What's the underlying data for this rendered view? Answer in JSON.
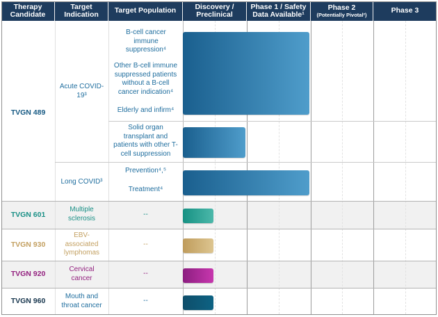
{
  "header": {
    "columns": [
      {
        "id": "therapy-candidate",
        "label": "Therapy Candidate"
      },
      {
        "id": "target-indication",
        "label": "Target Indication"
      },
      {
        "id": "target-population",
        "label": "Target Population"
      },
      {
        "id": "discovery-preclinical",
        "label": "Discovery / Preclinical"
      },
      {
        "id": "phase-1",
        "label": "Phase 1 / Safety Data Available¹"
      },
      {
        "id": "phase-2",
        "label": "Phase 2",
        "sublabel": "(Potentially Pivotal²)"
      },
      {
        "id": "phase-3",
        "label": "Phase 3"
      }
    ]
  },
  "tvgn489": {
    "candidate": "TVGN 489",
    "acute": {
      "indication": "Acute COVID-19³",
      "population_1": "B-cell cancer immune suppression⁴",
      "population_2": "Other B-cell immune suppressed patients without a B-cell cancer indication⁴",
      "population_3": "Elderly and infirm⁴",
      "population_secondary": "Solid organ transplant and patients with other T-cell suppression"
    },
    "long_covid": {
      "indication": "Long COVID³",
      "population_1": "Prevention⁴,⁵",
      "population_2": "Treatment⁴"
    }
  },
  "programs": [
    {
      "candidate": "TVGN 601",
      "indication": "Multiple sclerosis",
      "population": "--"
    },
    {
      "candidate": "TVGN 930",
      "indication": "EBV-associated lymphomas",
      "population": "--"
    },
    {
      "candidate": "TVGN 920",
      "indication": "Cervical cancer",
      "population": "--"
    },
    {
      "candidate": "TVGN 960",
      "indication": "Mouth and throat cancer",
      "population": "--"
    }
  ],
  "colors": {
    "header_bg": "#1e3c5e",
    "header_text": "#ffffff",
    "row_stripe": "#f1f1f1",
    "grid_line": "#9c9c9c",
    "light_line": "#c9c9c9",
    "blue_text": "#1e6d9e",
    "tvgn489_text": "#175a84",
    "teal_text": "#1a9086",
    "gold_text": "#c3a061",
    "magenta_text": "#93217f",
    "navy_text": "#16354d",
    "bars": {
      "blue": {
        "from": "#1a5f8e",
        "to": "#4f9dcb"
      },
      "teal": {
        "from": "#169183",
        "to": "#4cb8aa"
      },
      "gold": {
        "from": "#bf9c5c",
        "to": "#ddc590"
      },
      "magenta": {
        "from": "#8c1e80",
        "to": "#c737ae"
      },
      "navy": {
        "from": "#0f4e6a",
        "to": "#0d6283"
      }
    }
  },
  "chart_data": {
    "type": "bar",
    "title": "Therapy candidate development pipeline",
    "stages": [
      "Discovery / Preclinical",
      "Phase 1 / Safety Data Available¹",
      "Phase 2 (Potentially Pivotal²)",
      "Phase 3"
    ],
    "stage_axis_note": "stages_completed measured in phase-column units from start of Discovery / Preclinical",
    "bars": [
      {
        "id": "acute-main",
        "candidate": "TVGN 489",
        "indication": "Acute COVID-19³",
        "population": "B-cell cancer immune suppression⁴; Other B-cell immune suppressed patients without a B-cell cancer indication⁴; Elderly and infirm⁴",
        "stages_completed": 2,
        "color": "blue"
      },
      {
        "id": "acute-solid",
        "candidate": "TVGN 489",
        "indication": "Acute COVID-19³",
        "population": "Solid organ transplant and patients with other T-cell suppression",
        "stages_completed": 1,
        "color": "blue"
      },
      {
        "id": "long-covid",
        "candidate": "TVGN 489",
        "indication": "Long COVID³",
        "population": "Prevention⁴,⁵; Treatment⁴",
        "stages_completed": 2,
        "color": "blue"
      },
      {
        "id": "tvgn601",
        "candidate": "TVGN 601",
        "indication": "Multiple sclerosis",
        "population": "--",
        "stages_completed": 0.5,
        "color": "teal"
      },
      {
        "id": "tvgn930",
        "candidate": "TVGN 930",
        "indication": "EBV-associated lymphomas",
        "population": "--",
        "stages_completed": 0.5,
        "color": "gold"
      },
      {
        "id": "tvgn920",
        "candidate": "TVGN 920",
        "indication": "Cervical cancer",
        "population": "--",
        "stages_completed": 0.5,
        "color": "magenta"
      },
      {
        "id": "tvgn960",
        "candidate": "TVGN 960",
        "indication": "Mouth and throat cancer",
        "population": "--",
        "stages_completed": 0.5,
        "color": "navy"
      }
    ]
  }
}
